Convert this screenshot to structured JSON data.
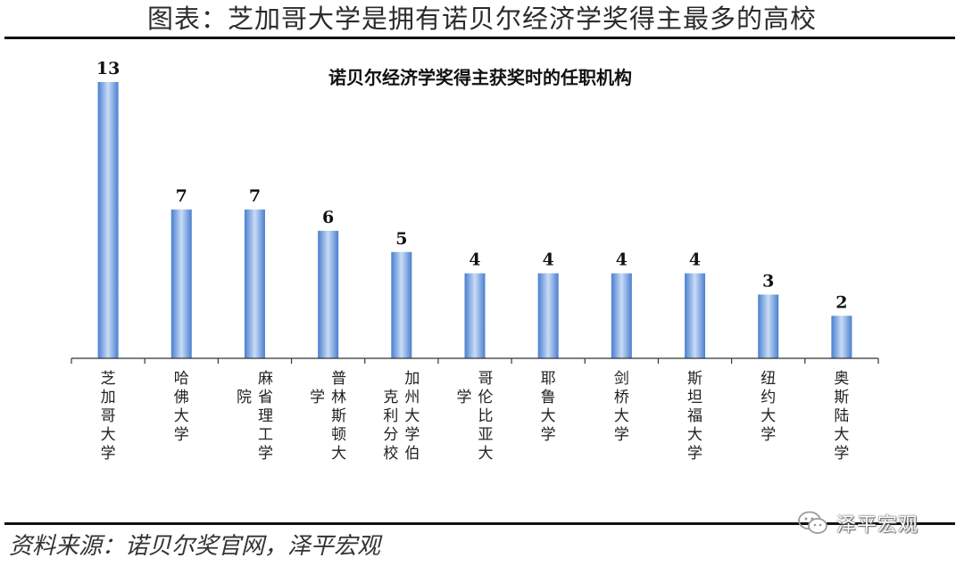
{
  "header": {
    "figure_title": "图表：芝加哥大学是拥有诺贝尔经济学奖得主最多的高校"
  },
  "footer": {
    "source": "资料来源：诺贝尔奖官网，泽平宏观",
    "watermark": "泽平宏观",
    "watermark_icon": "wechat-icon"
  },
  "colors": {
    "bar_mid": "#4a7fd0",
    "bar_edge": "#c9dcf6",
    "axis": "#333333",
    "rule": "#111111"
  },
  "chart_data": {
    "type": "bar",
    "title": "诺贝尔经济学奖得主获奖时的任职机构",
    "categories": [
      "芝加哥大学",
      "哈佛大学",
      "麻省理工学院",
      "普林斯顿大学",
      "加州大学伯克利分校",
      "哥伦比亚大学",
      "耶鲁大学",
      "剑桥大学",
      "斯坦福大学",
      "纽约大学",
      "奥斯陆大学"
    ],
    "values": [
      13,
      7,
      7,
      6,
      5,
      4,
      4,
      4,
      4,
      3,
      2
    ],
    "ylim": [
      0,
      13
    ],
    "grid": false,
    "legend": "none",
    "label_orientation": "vertical"
  }
}
